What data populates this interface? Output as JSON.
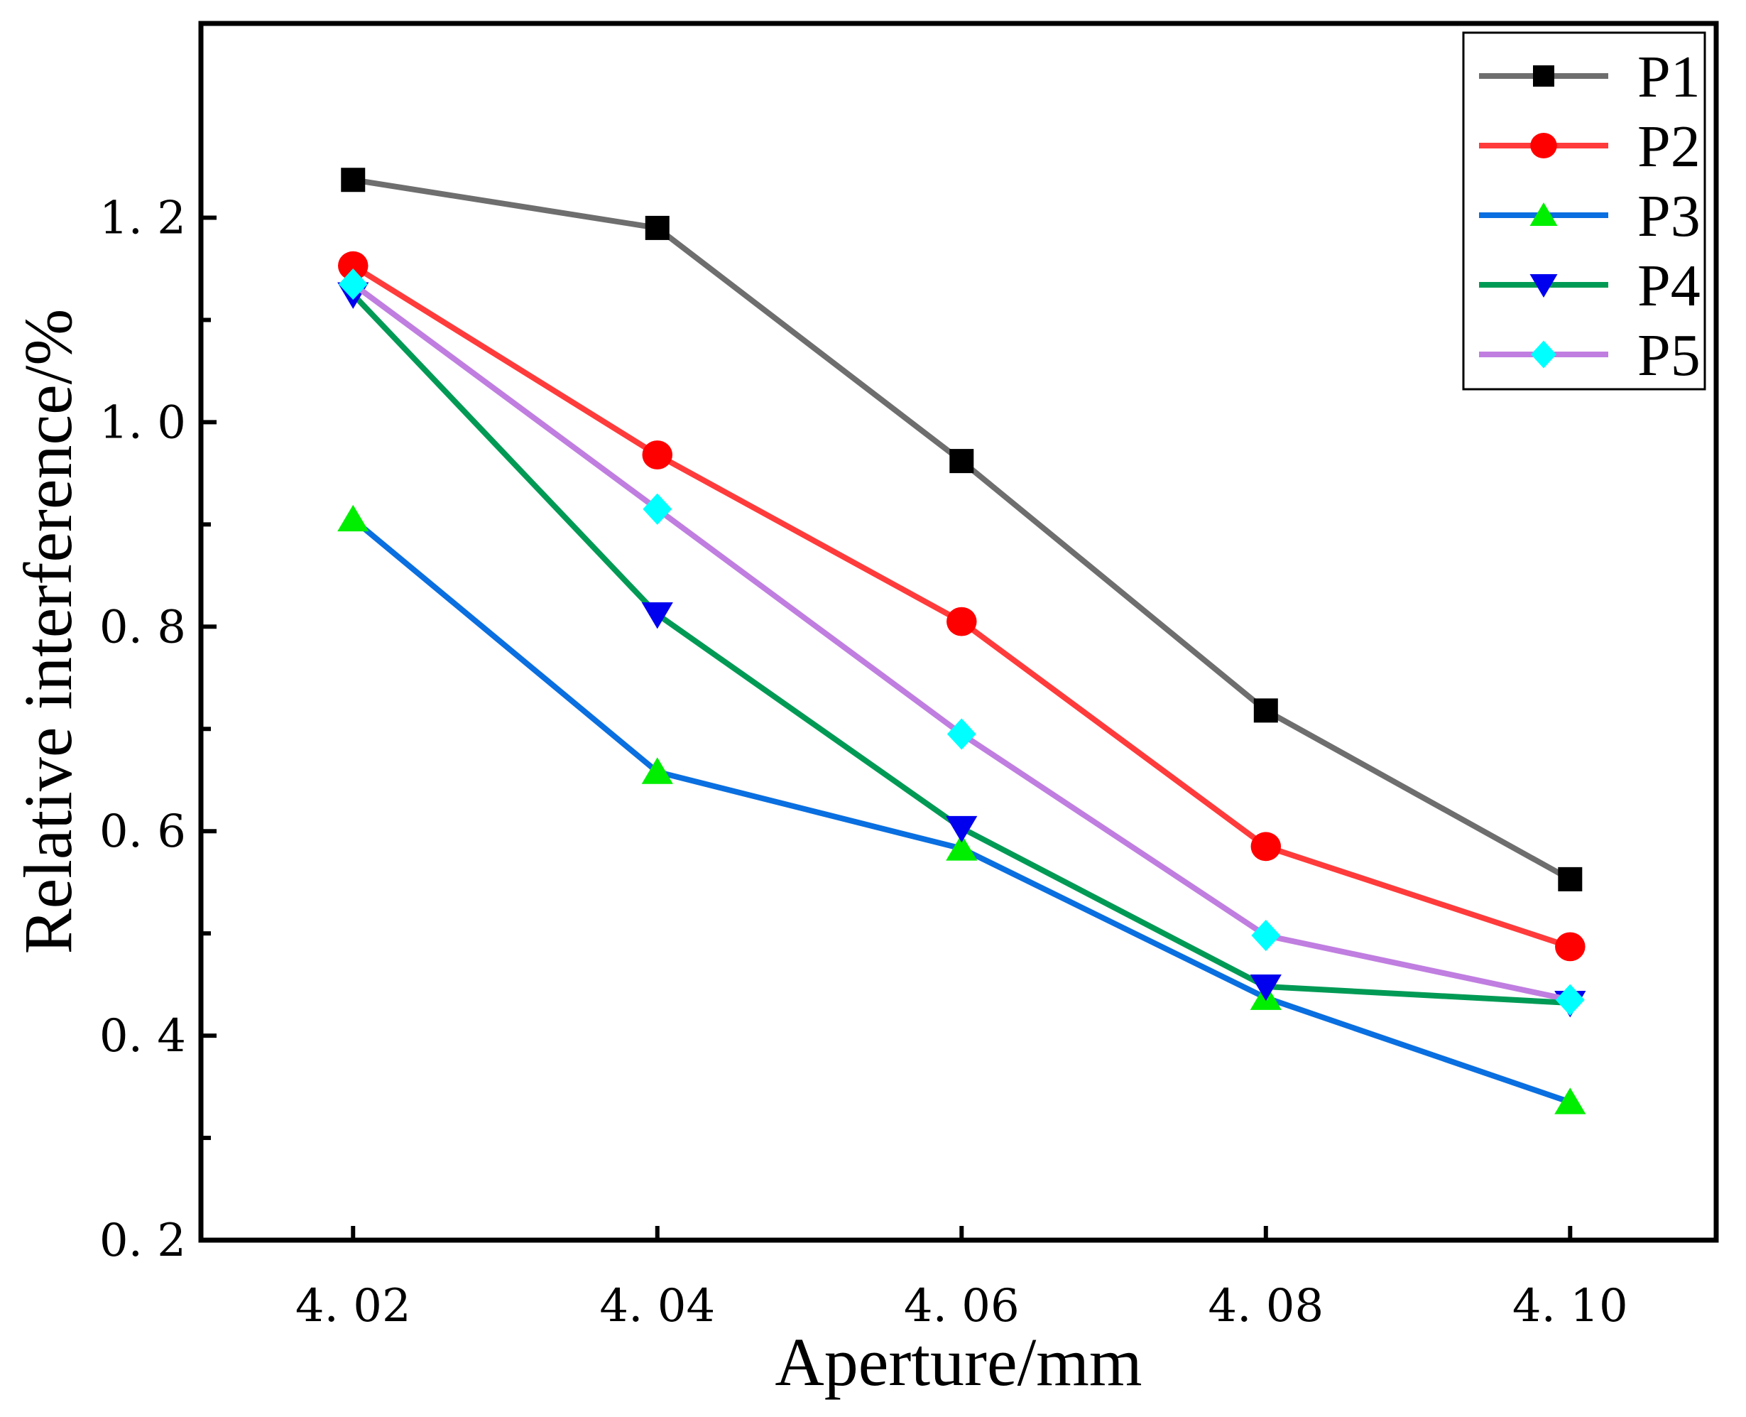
{
  "chart_data": {
    "type": "line",
    "title": "",
    "xlabel": "Aperture/mm",
    "ylabel": "Relative interference/%",
    "x": [
      4.02,
      4.04,
      4.06,
      4.08,
      4.1
    ],
    "x_tick_labels": [
      "4. 02",
      "4. 04",
      "4. 06",
      "4. 08",
      "4. 10"
    ],
    "xlim": [
      4.01,
      4.1096
    ],
    "y_tick_labels": [
      "0. 2",
      "0. 4",
      "0. 6",
      "0. 8",
      "1. 0",
      "1. 2"
    ],
    "y_ticks": [
      0.2,
      0.4,
      0.6,
      0.8,
      1.0,
      1.2
    ],
    "y_minor_ticks": [
      0.3,
      0.5,
      0.7,
      0.9,
      1.1
    ],
    "ylim": [
      0.2,
      1.39
    ],
    "grid": false,
    "legend_position": "top-right",
    "series": [
      {
        "name": "P1",
        "line_color": "#6e6e6e",
        "marker_color": "#000000",
        "marker": "square",
        "values": [
          1.237,
          1.19,
          0.962,
          0.718,
          0.553
        ]
      },
      {
        "name": "P2",
        "line_color": "#ff3b3b",
        "marker_color": "#ff0000",
        "marker": "circle",
        "values": [
          1.153,
          0.968,
          0.805,
          0.585,
          0.487
        ]
      },
      {
        "name": "P3",
        "line_color": "#0a6fe0",
        "marker_color": "#00ee00",
        "marker": "triangle-up",
        "values": [
          0.905,
          0.658,
          0.583,
          0.437,
          0.335
        ]
      },
      {
        "name": "P4",
        "line_color": "#009a55",
        "marker_color": "#0000ee",
        "marker": "triangle-down",
        "values": [
          1.125,
          0.812,
          0.603,
          0.448,
          0.432
        ]
      },
      {
        "name": "P5",
        "line_color": "#c07ee0",
        "marker_color": "#00ffff",
        "marker": "diamond",
        "values": [
          1.135,
          0.915,
          0.695,
          0.498,
          0.435
        ]
      }
    ]
  }
}
